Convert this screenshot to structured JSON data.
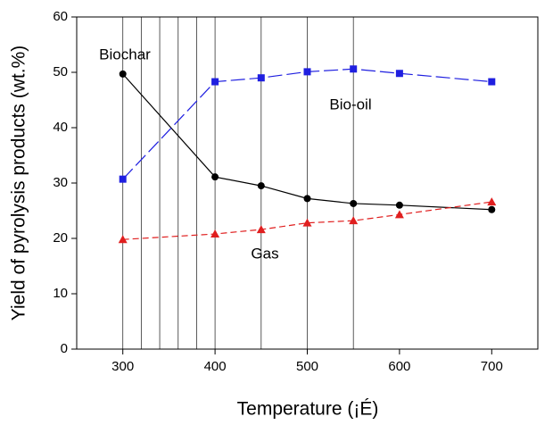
{
  "chart_data": {
    "type": "line",
    "x_label": "Temperature (¡É)",
    "y_label": "Yield of pyrolysis products (wt.%)",
    "x": [
      300,
      400,
      450,
      500,
      550,
      600,
      700
    ],
    "series": [
      {
        "name": "Biochar",
        "color": "#000000",
        "marker": "circle",
        "dash": "solid",
        "values": [
          49.7,
          31.1,
          29.5,
          27.2,
          26.3,
          26.0,
          25.2
        ]
      },
      {
        "name": "Bio-oil",
        "color": "#1f1fe0",
        "marker": "square",
        "dash": "long",
        "values": [
          30.7,
          48.3,
          49.0,
          50.1,
          50.6,
          49.8,
          48.3
        ]
      },
      {
        "name": "Gas",
        "color": "#e01f1f",
        "marker": "triangle",
        "dash": "short",
        "values": [
          19.8,
          20.8,
          21.6,
          22.8,
          23.2,
          24.3,
          26.6
        ]
      }
    ],
    "vertical_lines": [
      300,
      320,
      340,
      360,
      380,
      400,
      450,
      500,
      550
    ],
    "xlim": [
      250,
      750
    ],
    "xticks": [
      300,
      400,
      500,
      600,
      700
    ],
    "ylim": [
      0,
      60
    ],
    "yticks": [
      0,
      10,
      20,
      30,
      40,
      50,
      60
    ]
  }
}
